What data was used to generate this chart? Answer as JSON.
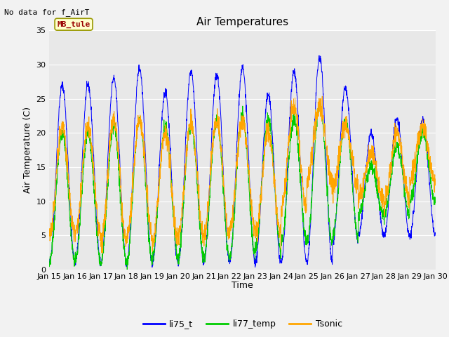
{
  "title": "Air Temperatures",
  "ylabel": "Air Temperature (C)",
  "xlabel": "Time",
  "annotation": "No data for f_AirT",
  "legend_label": "MB_tule",
  "series": [
    "li75_t",
    "li77_temp",
    "Tsonic"
  ],
  "colors": [
    "#0000FF",
    "#00CC00",
    "#FFA500"
  ],
  "ylim": [
    0,
    35
  ],
  "n_days": 15,
  "points_per_day": 144,
  "bg_color": "#E8E8E8",
  "grid_color": "#FFFFFF",
  "title_fontsize": 11,
  "label_fontsize": 9,
  "tick_fontsize": 8,
  "legend_box_color": "#FFFFCC",
  "legend_box_edge": "#999900",
  "yticks": [
    0,
    5,
    10,
    15,
    20,
    25,
    30,
    35
  ],
  "peak_blue": [
    27,
    27,
    28,
    29.5,
    26,
    29,
    28.5,
    29.5,
    25.5,
    29,
    31,
    26.5,
    20,
    22,
    22
  ],
  "valley_blue": [
    1,
    1,
    1,
    1,
    1,
    1,
    1,
    1,
    1,
    1,
    1,
    4,
    5,
    5,
    5
  ],
  "peak_green": [
    20,
    20,
    21,
    22,
    21,
    21.5,
    22,
    22.5,
    22,
    22,
    24,
    22,
    15,
    18,
    20
  ],
  "valley_green": [
    1,
    1,
    1,
    1,
    2,
    2,
    2,
    2,
    3,
    4,
    4,
    5,
    8,
    8,
    10
  ],
  "peak_orange": [
    21,
    21,
    22,
    22,
    20,
    21.5,
    22,
    22,
    20,
    24,
    24,
    21,
    17,
    20,
    21
  ],
  "valley_orange": [
    5,
    5,
    4,
    5,
    4,
    5,
    5,
    6,
    5,
    9,
    13,
    12,
    10,
    10,
    13
  ],
  "noise_blue": 0.3,
  "noise_green": 0.5,
  "noise_orange": 0.8
}
